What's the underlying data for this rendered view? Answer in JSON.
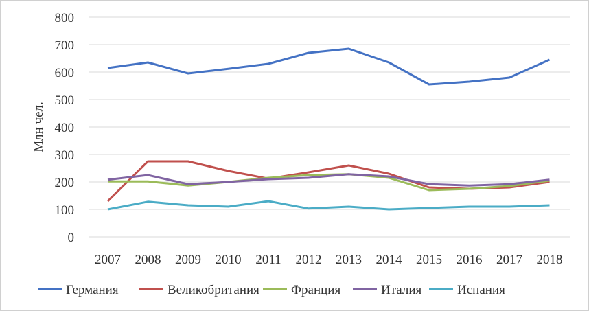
{
  "chart_data": {
    "type": "line",
    "title": "",
    "xlabel": "",
    "ylabel": "Млн чел.",
    "ylim": [
      0,
      800
    ],
    "yticks": [
      0,
      100,
      200,
      300,
      400,
      500,
      600,
      700,
      800
    ],
    "grid": true,
    "legend_position": "bottom",
    "categories": [
      "2007",
      "2008",
      "2009",
      "2010",
      "2011",
      "2012",
      "2013",
      "2014",
      "2015",
      "2016",
      "2017",
      "2018"
    ],
    "series": [
      {
        "name": "Германия",
        "color": "#4472c4",
        "values": [
          615,
          635,
          595,
          612,
          630,
          670,
          685,
          635,
          555,
          565,
          580,
          645
        ]
      },
      {
        "name": "Великобритания",
        "color": "#c0504d",
        "values": [
          130,
          275,
          275,
          240,
          212,
          235,
          260,
          230,
          180,
          175,
          180,
          200
        ]
      },
      {
        "name": "Франция",
        "color": "#9bbb59",
        "values": [
          202,
          202,
          187,
          200,
          215,
          225,
          228,
          215,
          170,
          175,
          185,
          205
        ]
      },
      {
        "name": "Италия",
        "color": "#8064a2",
        "values": [
          208,
          225,
          192,
          200,
          210,
          215,
          228,
          220,
          192,
          187,
          192,
          208
        ]
      },
      {
        "name": "Испания",
        "color": "#4bacc6",
        "values": [
          100,
          128,
          115,
          110,
          130,
          103,
          110,
          100,
          105,
          110,
          110,
          115
        ]
      }
    ]
  }
}
